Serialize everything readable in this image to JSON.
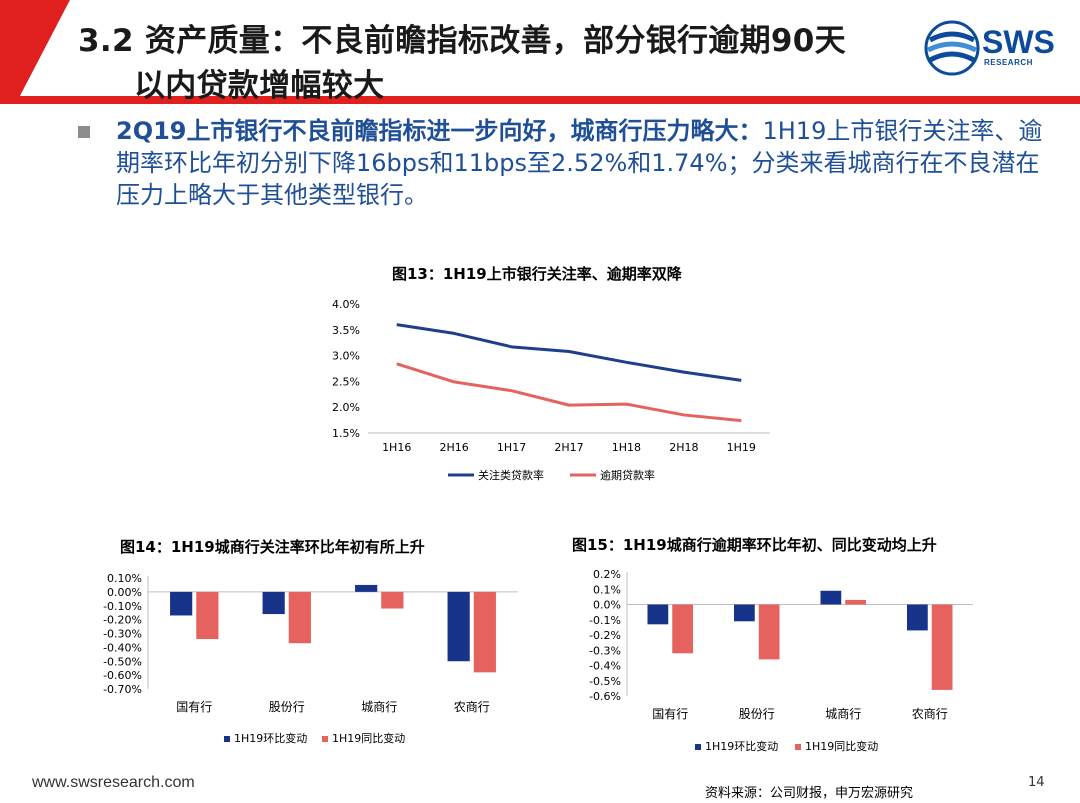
{
  "header": {
    "title_line1": "3.2 资产质量：不良前瞻指标改善，部分银行逾期90天",
    "title_line2": "以内贷款增幅较大",
    "logo_text": "SWS",
    "logo_sub": "RESEARCH",
    "colors": {
      "red": "#e0201e",
      "blue": "#0c4a9b"
    }
  },
  "summary": {
    "bold_part": "2Q19上市银行不良前瞻指标进一步向好，城商行压力略大：",
    "normal_part": "1H19上市银行关注率、逾期率环比年初分别下降16bps和11bps至2.52%和1.74%；分类来看城商行在不良潜在压力上略大于其他类型银行。"
  },
  "chart13": {
    "title": "图13：1H19上市银行关注率、逾期率双降",
    "chart_data": {
      "type": "line",
      "categories": [
        "1H16",
        "2H16",
        "1H17",
        "2H17",
        "1H18",
        "2H18",
        "1H19"
      ],
      "ylim": [
        1.5,
        4.0
      ],
      "yticks": [
        4.0,
        3.5,
        3.0,
        2.5,
        2.0,
        1.5
      ],
      "ytick_labels": [
        "4.0%",
        "3.5%",
        "3.0%",
        "2.5%",
        "2.0%",
        "1.5%"
      ],
      "series": [
        {
          "name": "关注类贷款率",
          "color": "#1f3e8c",
          "values": [
            3.6,
            3.43,
            3.17,
            3.08,
            2.87,
            2.68,
            2.52
          ]
        },
        {
          "name": "逾期贷款率",
          "color": "#e6625f",
          "values": [
            2.84,
            2.49,
            2.32,
            2.04,
            2.06,
            1.85,
            1.74
          ]
        }
      ],
      "legend_position": "bottom"
    }
  },
  "chart14": {
    "title": "图14：1H19城商行关注率环比年初有所上升",
    "chart_data": {
      "type": "bar",
      "categories": [
        "国有行",
        "股份行",
        "城商行",
        "农商行"
      ],
      "ylim": [
        -0.7,
        0.1
      ],
      "yticks": [
        0.1,
        0.0,
        -0.1,
        -0.2,
        -0.3,
        -0.4,
        -0.5,
        -0.6,
        -0.7
      ],
      "ytick_labels": [
        "0.10%",
        "0.00%",
        "-0.10%",
        "-0.20%",
        "-0.30%",
        "-0.40%",
        "-0.50%",
        "-0.60%",
        "-0.70%"
      ],
      "series": [
        {
          "name": "1H19环比变动",
          "color": "#17348a",
          "values": [
            -0.17,
            -0.16,
            0.05,
            -0.5
          ]
        },
        {
          "name": "1H19同比变动",
          "color": "#e6625f",
          "values": [
            -0.34,
            -0.37,
            -0.12,
            -0.58
          ]
        }
      ],
      "legend_position": "bottom"
    }
  },
  "chart15": {
    "title": "图15：1H19城商行逾期率环比年初、同比变动均上升",
    "chart_data": {
      "type": "bar",
      "categories": [
        "国有行",
        "股份行",
        "城商行",
        "农商行"
      ],
      "ylim": [
        -0.6,
        0.2
      ],
      "yticks": [
        0.2,
        0.1,
        0.0,
        -0.1,
        -0.2,
        -0.3,
        -0.4,
        -0.5,
        -0.6
      ],
      "ytick_labels": [
        "0.2%",
        "0.1%",
        "0.0%",
        "-0.1%",
        "-0.2%",
        "-0.3%",
        "-0.4%",
        "-0.5%",
        "-0.6%"
      ],
      "series": [
        {
          "name": "1H19环比变动",
          "color": "#17348a",
          "values": [
            -0.13,
            -0.11,
            0.09,
            -0.17
          ]
        },
        {
          "name": "1H19同比变动",
          "color": "#e6625f",
          "values": [
            -0.32,
            -0.36,
            0.03,
            -0.56
          ]
        }
      ],
      "legend_position": "bottom"
    }
  },
  "footer": {
    "url": "www.swsresearch.com",
    "source": "资料来源：公司财报，申万宏源研究",
    "page": "14"
  }
}
